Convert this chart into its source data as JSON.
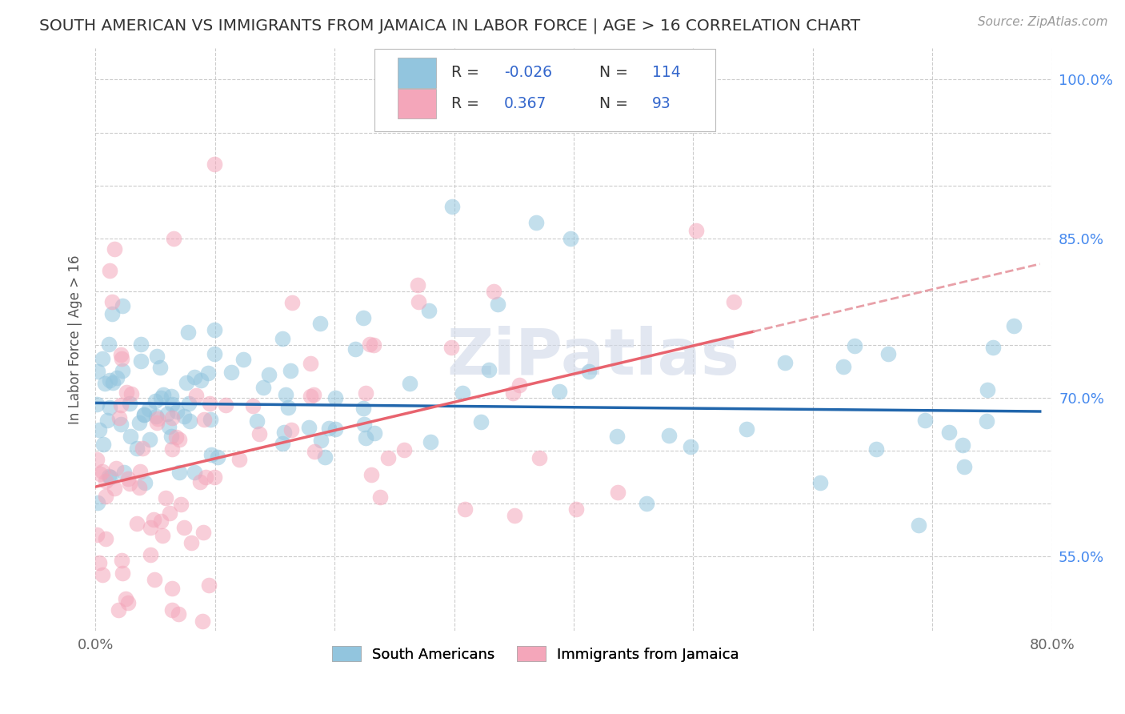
{
  "title": "SOUTH AMERICAN VS IMMIGRANTS FROM JAMAICA IN LABOR FORCE | AGE > 16 CORRELATION CHART",
  "source": "Source: ZipAtlas.com",
  "ylabel": "In Labor Force | Age > 16",
  "xlim": [
    0.0,
    0.8
  ],
  "ylim": [
    0.48,
    1.03
  ],
  "ytick_positions": [
    0.55,
    0.6,
    0.65,
    0.7,
    0.75,
    0.8,
    0.85,
    0.9,
    0.95,
    1.0
  ],
  "ytick_labels": [
    "55.0%",
    "",
    "",
    "70.0%",
    "",
    "",
    "85.0%",
    "",
    "",
    "100.0%"
  ],
  "xtick_positions": [
    0.0,
    0.1,
    0.2,
    0.3,
    0.4,
    0.5,
    0.6,
    0.7,
    0.8
  ],
  "xtick_labels": [
    "0.0%",
    "",
    "",
    "",
    "",
    "",
    "",
    "",
    "80.0%"
  ],
  "blue_R": "-0.026",
  "blue_N": "114",
  "pink_R": "0.367",
  "pink_N": "93",
  "blue_color": "#92c5de",
  "pink_color": "#f4a6ba",
  "blue_line_color": "#2166ac",
  "pink_line_color": "#e8636e",
  "pink_dash_color": "#e8a0a8",
  "watermark": "ZiPatlas",
  "legend_labels": [
    "South Americans",
    "Immigrants from Jamaica"
  ]
}
